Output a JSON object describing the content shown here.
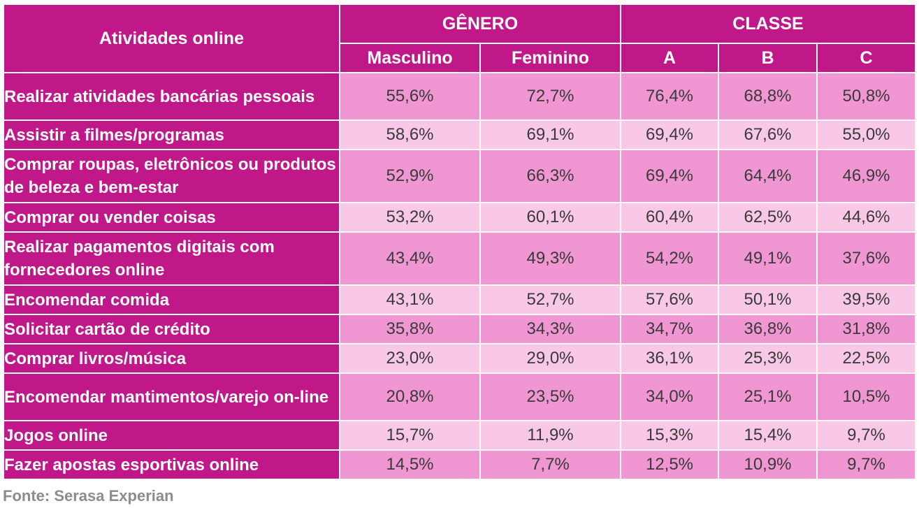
{
  "chart_data": {
    "type": "table",
    "row_header_label": "Atividades online",
    "groups": [
      {
        "label": "GÊNERO",
        "columns": [
          "Masculino",
          "Feminino"
        ]
      },
      {
        "label": "CLASSE",
        "columns": [
          "A",
          "B",
          "C"
        ]
      }
    ],
    "rows": [
      {
        "label": "Realizar atividades bancárias pessoais",
        "values": [
          "55,6%",
          "72,7%",
          "76,4%",
          "68,8%",
          "50,8%"
        ]
      },
      {
        "label": "Assistir a filmes/programas",
        "values": [
          "58,6%",
          "69,1%",
          "69,4%",
          "67,6%",
          "55,0%"
        ]
      },
      {
        "label": "Comprar roupas, eletrônicos ou produtos de beleza e bem-estar",
        "values": [
          "52,9%",
          "66,3%",
          "69,4%",
          "64,4%",
          "46,9%"
        ]
      },
      {
        "label": "Comprar ou vender coisas",
        "values": [
          "53,2%",
          "60,1%",
          "60,4%",
          "62,5%",
          "44,6%"
        ]
      },
      {
        "label": "Realizar pagamentos digitais com fornecedores online",
        "values": [
          "43,4%",
          "49,3%",
          "54,2%",
          "49,1%",
          "37,6%"
        ]
      },
      {
        "label": "Encomendar comida",
        "values": [
          "43,1%",
          "52,7%",
          "57,6%",
          "50,1%",
          "39,5%"
        ]
      },
      {
        "label": "Solicitar cartão de crédito",
        "values": [
          "35,8%",
          "34,3%",
          "34,7%",
          "36,8%",
          "31,8%"
        ]
      },
      {
        "label": "Comprar livros/música",
        "values": [
          "23,0%",
          "29,0%",
          "36,1%",
          "25,3%",
          "22,5%"
        ]
      },
      {
        "label": "Encomendar mantimentos/varejo on-line",
        "values": [
          "20,8%",
          "23,5%",
          "34,0%",
          "25,1%",
          "10,5%"
        ]
      },
      {
        "label": "Jogos online",
        "values": [
          "15,7%",
          "11,9%",
          "15,3%",
          "15,4%",
          "9,7%"
        ]
      },
      {
        "label": "Fazer apostas esportivas online",
        "values": [
          "14,5%",
          "7,7%",
          "12,5%",
          "10,9%",
          "9,7%"
        ]
      }
    ],
    "source": "Fonte: Serasa Experian",
    "colors": {
      "header": "#c01888",
      "row_dark": "#f096d2",
      "row_light": "#f8c8e6",
      "source_text": "#8c8c8c"
    }
  }
}
